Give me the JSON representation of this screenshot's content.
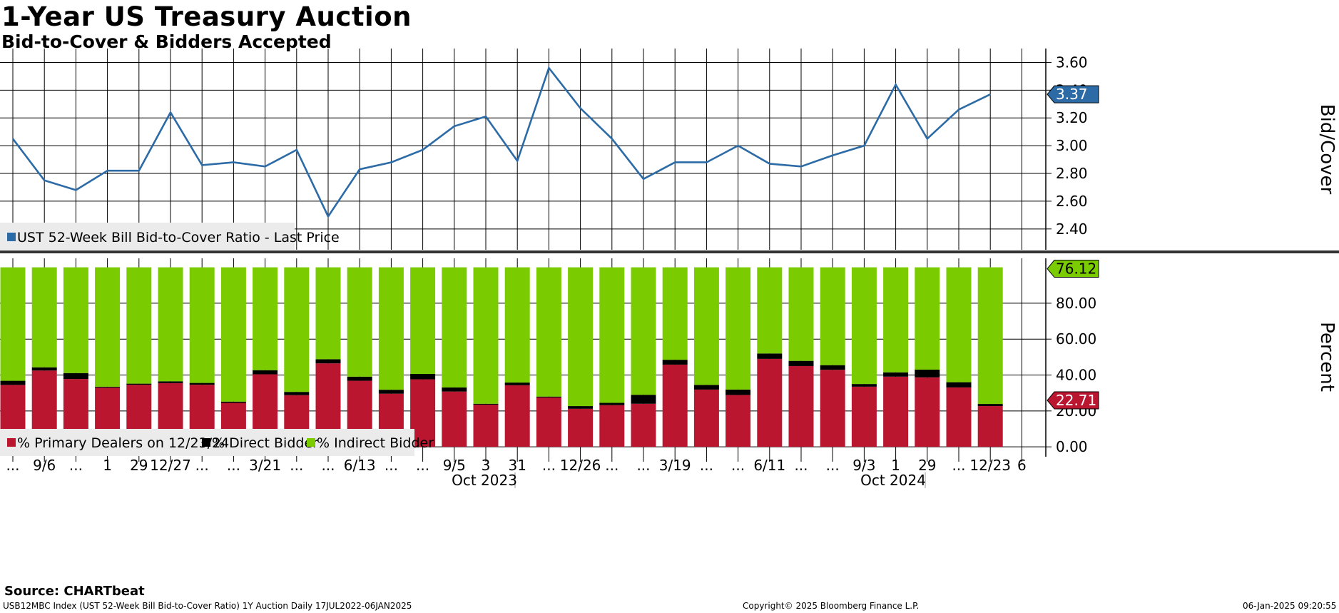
{
  "title": "1-Year US Treasury Auction",
  "subtitle": "Bid-to-Cover & Bidders Accepted",
  "footer": {
    "source": "Source: CHARTbeat",
    "description": "USB12MBC Index (UST 52-Week Bill Bid-to-Cover Ratio) 1Y Auction  Daily 17JUL2022-06JAN2025",
    "copyright": "Copyright© 2025 Bloomberg Finance L.P.",
    "timestamp": "06-Jan-2025 09:20:55"
  },
  "colors": {
    "line": "#2C6BA6",
    "primary": "#BA1630",
    "direct": "#000000",
    "indirect": "#7ACC00",
    "grid": "#000000",
    "legend_bg": "#EBEBEB"
  },
  "x_axis": {
    "tick_labels": [
      "...",
      "9/6",
      "...",
      "1",
      "29",
      "12/27",
      "...",
      "...",
      "3/21",
      "...",
      "...",
      "6/13",
      "...",
      "...",
      "9/5",
      "3",
      "31",
      "...",
      "12/26",
      "...",
      "...",
      "3/19",
      "...",
      "...",
      "6/11",
      "...",
      "...",
      "9/3",
      "1",
      "29",
      "...",
      "12/23",
      "6"
    ],
    "period_labels": [
      "Oct 2023",
      "Oct 2024"
    ]
  },
  "chart_data": [
    {
      "type": "line",
      "title": "Bid-to-Cover",
      "ylabel": "Bid/Cover",
      "ylim": [
        2.25,
        3.7
      ],
      "yticks": [
        "2.40",
        "2.60",
        "2.80",
        "3.00",
        "3.20",
        "3.40",
        "3.60"
      ],
      "grid": true,
      "series": [
        {
          "name": "UST 52-Week Bill Bid-to-Cover Ratio - Last Price",
          "values": [
            3.05,
            2.75,
            2.68,
            2.82,
            2.82,
            3.24,
            2.86,
            2.88,
            2.85,
            2.97,
            2.49,
            2.83,
            2.88,
            2.97,
            3.14,
            3.21,
            2.89,
            3.56,
            3.27,
            3.05,
            2.76,
            2.88,
            2.88,
            3.0,
            2.87,
            2.85,
            2.93,
            3.0,
            3.44,
            3.05,
            3.26,
            3.37
          ]
        }
      ],
      "last_value_label": "3.37"
    },
    {
      "type": "bar",
      "stacked": true,
      "title": "Bidders Accepted",
      "ylabel": "Percent",
      "ylim": [
        -5.5,
        105
      ],
      "yticks": [
        "0.00",
        "20.00",
        "40.00",
        "60.00",
        "80.00"
      ],
      "grid": true,
      "series": [
        {
          "name": "% Primary Dealers on 12/23/24",
          "values": [
            34.5,
            42.5,
            37.8,
            33.0,
            34.6,
            35.5,
            34.6,
            24.5,
            40.4,
            28.8,
            46.5,
            36.8,
            29.6,
            37.6,
            30.8,
            23.5,
            34.3,
            27.5,
            21.2,
            23.2,
            24.0,
            45.8,
            31.9,
            28.9,
            49.0,
            45.0,
            42.9,
            33.5,
            39.1,
            38.7,
            33.1,
            22.71
          ]
        },
        {
          "name": "% Direct Bidder",
          "values": [
            2.3,
            1.8,
            3.3,
            0.5,
            0.6,
            1.0,
            1.0,
            0.7,
            2.3,
            1.8,
            2.3,
            2.3,
            2.2,
            3.0,
            2.3,
            0.5,
            1.5,
            0.5,
            1.5,
            1.3,
            5.0,
            2.7,
            2.6,
            3.0,
            3.0,
            2.9,
            2.6,
            1.5,
            2.4,
            4.3,
            2.9,
            1.18
          ]
        },
        {
          "name": "% Indirect Bidder",
          "values": [
            63.2,
            55.7,
            58.9,
            66.5,
            64.8,
            63.5,
            64.4,
            74.8,
            57.3,
            69.4,
            51.2,
            60.9,
            68.2,
            59.4,
            66.9,
            76.0,
            64.2,
            72.0,
            77.3,
            75.5,
            71.0,
            51.5,
            65.5,
            68.1,
            48.0,
            52.1,
            54.5,
            65.0,
            58.5,
            57.0,
            64.0,
            76.12
          ]
        }
      ],
      "last_value_labels": {
        "primary": "22.71",
        "indirect": "76.12"
      }
    }
  ]
}
